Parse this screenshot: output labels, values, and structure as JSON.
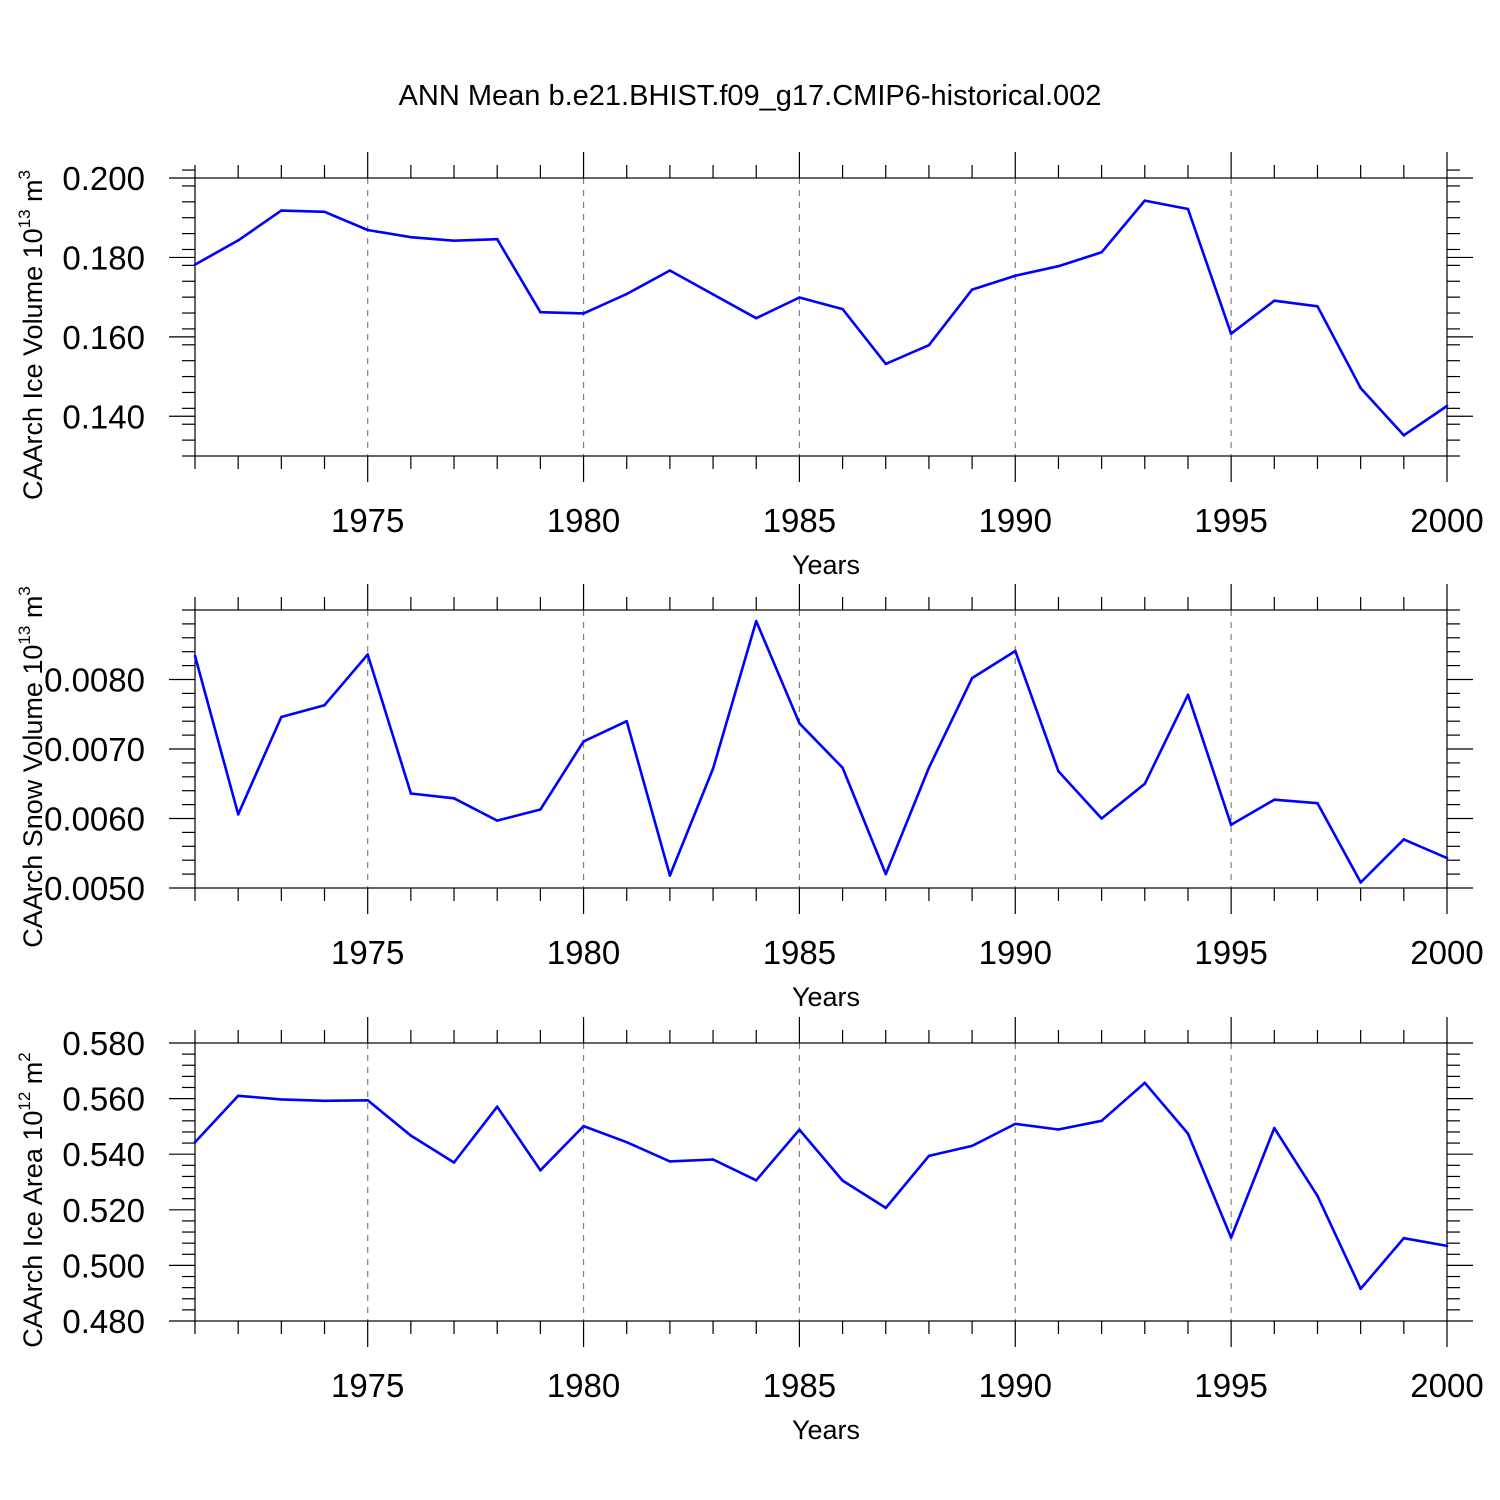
{
  "title": "ANN Mean b.e21.BHIST.f09_g17.CMIP6-historical.002",
  "colors": {
    "line": "#0000ff",
    "grid": "#808080",
    "axes": "#000000"
  },
  "chart_data": [
    {
      "type": "line",
      "ylabel": "CAArch Ice Volume 10",
      "ylabel_exp": "13",
      "ylabel_unit": " m",
      "ylabel_unit_exp": "3",
      "xlabel": "Years",
      "xlim": [
        1971,
        2000
      ],
      "ylim": [
        0.13,
        0.2
      ],
      "yticks": [
        0.14,
        0.16,
        0.18,
        0.2
      ],
      "ytick_labels": [
        "0.140",
        "0.160",
        "0.180",
        "0.200"
      ],
      "yminor_step": 0.004,
      "xticks": [
        1975,
        1980,
        1985,
        1990,
        1995,
        2000
      ],
      "xtick_labels": [
        "1975",
        "1980",
        "1985",
        "1990",
        "1995",
        "2000"
      ],
      "grid_x": true,
      "x": [
        1971,
        1972,
        1973,
        1974,
        1975,
        1976,
        1977,
        1978,
        1979,
        1980,
        1981,
        1982,
        1983,
        1984,
        1985,
        1986,
        1987,
        1988,
        1989,
        1990,
        1991,
        1992,
        1993,
        1994,
        1995,
        1996,
        1997,
        1998,
        1999,
        2000
      ],
      "y": [
        0.1782,
        0.1843,
        0.1918,
        0.1915,
        0.1869,
        0.1851,
        0.1842,
        0.1846,
        0.1662,
        0.1659,
        0.1708,
        0.1767,
        0.1707,
        0.1647,
        0.1699,
        0.167,
        0.1532,
        0.1579,
        0.1719,
        0.1754,
        0.1778,
        0.1813,
        0.1943,
        0.1922,
        0.1608,
        0.1691,
        0.1677,
        0.1471,
        0.1352,
        0.1426
      ]
    },
    {
      "type": "line",
      "ylabel": "CAArch Snow Volume 10",
      "ylabel_exp": "13",
      "ylabel_unit": " m",
      "ylabel_unit_exp": "3",
      "xlabel": "Years",
      "xlim": [
        1971,
        2000
      ],
      "ylim": [
        0.005,
        0.009
      ],
      "yticks": [
        0.005,
        0.006,
        0.007,
        0.008
      ],
      "ytick_labels": [
        "0.0050",
        "0.0060",
        "0.0070",
        "0.0080"
      ],
      "yminor_step": 0.0002,
      "xticks": [
        1975,
        1980,
        1985,
        1990,
        1995,
        2000
      ],
      "xtick_labels": [
        "1975",
        "1980",
        "1985",
        "1990",
        "1995",
        "2000"
      ],
      "grid_x": true,
      "x": [
        1971,
        1972,
        1973,
        1974,
        1975,
        1976,
        1977,
        1978,
        1979,
        1980,
        1981,
        1982,
        1983,
        1984,
        1985,
        1986,
        1987,
        1988,
        1989,
        1990,
        1991,
        1992,
        1993,
        1994,
        1995,
        1996,
        1997,
        1998,
        1999,
        2000
      ],
      "y": [
        0.00834,
        0.00606,
        0.00746,
        0.00763,
        0.00836,
        0.00636,
        0.00629,
        0.00597,
        0.00613,
        0.00711,
        0.0074,
        0.00518,
        0.00672,
        0.00884,
        0.00737,
        0.00673,
        0.0052,
        0.00673,
        0.00802,
        0.00841,
        0.00668,
        0.006,
        0.0065,
        0.00778,
        0.00591,
        0.00627,
        0.00622,
        0.00508,
        0.0057,
        0.00543
      ]
    },
    {
      "type": "line",
      "ylabel": "CAArch Ice Area 10",
      "ylabel_exp": "12",
      "ylabel_unit": " m",
      "ylabel_unit_exp": "2",
      "xlabel": "Years",
      "xlim": [
        1971,
        2000
      ],
      "ylim": [
        0.48,
        0.58
      ],
      "yticks": [
        0.48,
        0.5,
        0.52,
        0.54,
        0.56,
        0.58
      ],
      "ytick_labels": [
        "0.480",
        "0.500",
        "0.520",
        "0.540",
        "0.560",
        "0.580"
      ],
      "yminor_step": 0.004,
      "xticks": [
        1975,
        1980,
        1985,
        1990,
        1995,
        2000
      ],
      "xtick_labels": [
        "1975",
        "1980",
        "1985",
        "1990",
        "1995",
        "2000"
      ],
      "grid_x": true,
      "x": [
        1971,
        1972,
        1973,
        1974,
        1975,
        1976,
        1977,
        1978,
        1979,
        1980,
        1981,
        1982,
        1983,
        1984,
        1985,
        1986,
        1987,
        1988,
        1989,
        1990,
        1991,
        1992,
        1993,
        1994,
        1995,
        1996,
        1997,
        1998,
        1999,
        2000
      ],
      "y": [
        0.5443,
        0.561,
        0.5597,
        0.5592,
        0.5594,
        0.5467,
        0.537,
        0.5571,
        0.5342,
        0.5501,
        0.5443,
        0.5374,
        0.5381,
        0.5306,
        0.5488,
        0.5305,
        0.5207,
        0.5394,
        0.543,
        0.5509,
        0.5489,
        0.552,
        0.5657,
        0.5474,
        0.51,
        0.5494,
        0.525,
        0.4916,
        0.5098,
        0.507
      ]
    }
  ]
}
